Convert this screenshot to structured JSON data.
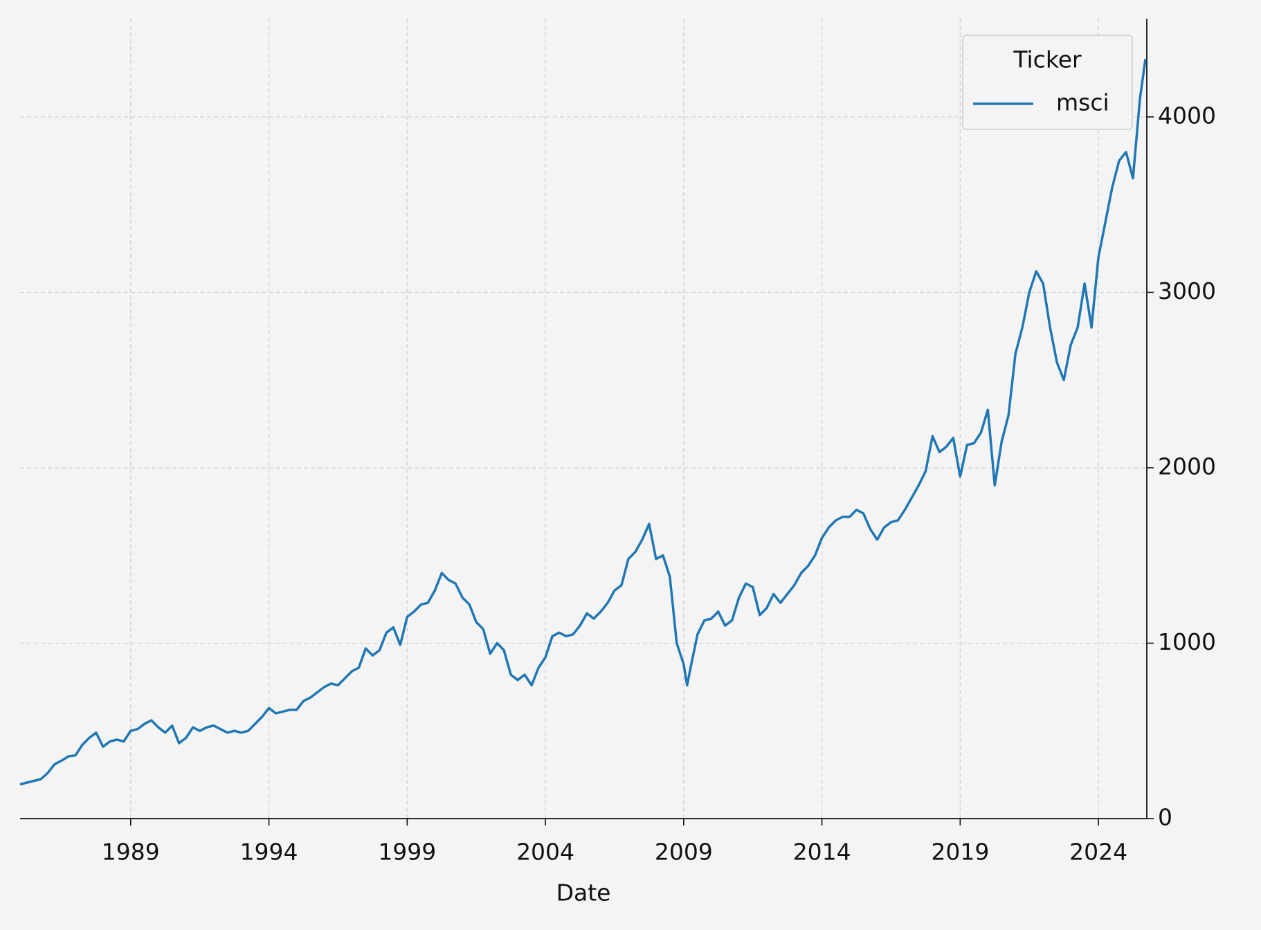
{
  "chart_data": {
    "type": "line",
    "xlabel": "Date",
    "legend_title": "Ticker",
    "legend_loc": "upper right",
    "grid": true,
    "x": [
      1985.0,
      1985.25,
      1985.5,
      1985.75,
      1986.0,
      1986.25,
      1986.5,
      1986.75,
      1987.0,
      1987.25,
      1987.5,
      1987.75,
      1988.0,
      1988.25,
      1988.5,
      1988.75,
      1989.0,
      1989.25,
      1989.5,
      1989.75,
      1990.0,
      1990.25,
      1990.5,
      1990.75,
      1991.0,
      1991.25,
      1991.5,
      1991.75,
      1992.0,
      1992.25,
      1992.5,
      1992.75,
      1993.0,
      1993.25,
      1993.5,
      1993.75,
      1994.0,
      1994.25,
      1994.5,
      1994.75,
      1995.0,
      1995.25,
      1995.5,
      1995.75,
      1996.0,
      1996.25,
      1996.5,
      1996.75,
      1997.0,
      1997.25,
      1997.5,
      1997.75,
      1998.0,
      1998.25,
      1998.5,
      1998.75,
      1999.0,
      1999.25,
      1999.5,
      1999.75,
      2000.0,
      2000.25,
      2000.5,
      2000.75,
      2001.0,
      2001.25,
      2001.5,
      2001.75,
      2002.0,
      2002.25,
      2002.5,
      2002.75,
      2003.0,
      2003.25,
      2003.5,
      2003.75,
      2004.0,
      2004.25,
      2004.5,
      2004.75,
      2005.0,
      2005.25,
      2005.5,
      2005.75,
      2006.0,
      2006.25,
      2006.5,
      2006.75,
      2007.0,
      2007.25,
      2007.5,
      2007.75,
      2008.0,
      2008.25,
      2008.5,
      2008.75,
      2009.0,
      2009.125,
      2009.25,
      2009.5,
      2009.75,
      2010.0,
      2010.25,
      2010.5,
      2010.75,
      2011.0,
      2011.25,
      2011.5,
      2011.75,
      2012.0,
      2012.25,
      2012.5,
      2012.75,
      2013.0,
      2013.25,
      2013.5,
      2013.75,
      2014.0,
      2014.25,
      2014.5,
      2014.75,
      2015.0,
      2015.25,
      2015.5,
      2015.75,
      2016.0,
      2016.25,
      2016.5,
      2016.75,
      2017.0,
      2017.25,
      2017.5,
      2017.75,
      2018.0,
      2018.25,
      2018.5,
      2018.75,
      2019.0,
      2019.25,
      2019.5,
      2019.75,
      2020.0,
      2020.25,
      2020.5,
      2020.75,
      2021.0,
      2021.25,
      2021.5,
      2021.75,
      2022.0,
      2022.25,
      2022.5,
      2022.75,
      2023.0,
      2023.25,
      2023.5,
      2023.75,
      2024.0,
      2024.25,
      2024.5,
      2024.75,
      2025.0,
      2025.25,
      2025.5,
      2025.7
    ],
    "series": [
      {
        "name": "msci",
        "color": "#1f77b4",
        "values": [
          195,
          205,
          215,
          225,
          260,
          310,
          330,
          355,
          360,
          420,
          460,
          490,
          410,
          440,
          450,
          440,
          500,
          510,
          540,
          560,
          520,
          490,
          530,
          430,
          460,
          520,
          500,
          520,
          530,
          510,
          490,
          500,
          490,
          500,
          540,
          580,
          630,
          600,
          610,
          620,
          620,
          670,
          690,
          720,
          750,
          770,
          760,
          800,
          840,
          860,
          970,
          930,
          960,
          1060,
          1090,
          990,
          1150,
          1180,
          1220,
          1230,
          1300,
          1400,
          1360,
          1340,
          1260,
          1220,
          1120,
          1080,
          940,
          1000,
          960,
          820,
          790,
          820,
          760,
          860,
          920,
          1040,
          1060,
          1040,
          1050,
          1100,
          1170,
          1140,
          1180,
          1230,
          1300,
          1330,
          1480,
          1520,
          1590,
          1680,
          1480,
          1500,
          1380,
          1000,
          880,
          760,
          860,
          1050,
          1130,
          1140,
          1180,
          1100,
          1130,
          1260,
          1340,
          1320,
          1160,
          1200,
          1280,
          1230,
          1280,
          1330,
          1400,
          1440,
          1500,
          1600,
          1660,
          1700,
          1720,
          1720,
          1760,
          1740,
          1650,
          1590,
          1660,
          1690,
          1700,
          1760,
          1830,
          1900,
          1980,
          2180,
          2090,
          2120,
          2170,
          1950,
          2130,
          2140,
          2200,
          2330,
          1900,
          2150,
          2300,
          2650,
          2800,
          3000,
          3120,
          3050,
          2800,
          2600,
          2500,
          2700,
          2800,
          3050,
          2800,
          3200,
          3400,
          3600,
          3750,
          3800,
          3650,
          4100,
          4330
        ]
      }
    ],
    "xlim": [
      1985.0,
      2025.75
    ],
    "xticks": [
      1989,
      1994,
      1999,
      2004,
      2009,
      2014,
      2019,
      2024
    ],
    "ylim": [
      0,
      4560
    ],
    "yticks": [
      0,
      1000,
      2000,
      3000,
      4000
    ]
  }
}
